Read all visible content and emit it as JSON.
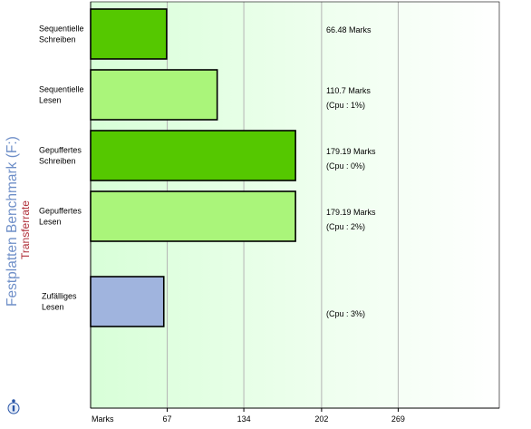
{
  "window": {
    "title": "Festplatten Benchmark (F:)",
    "subtitle": "Transferrate",
    "info_icon": "info-icon"
  },
  "colors": {
    "title": "#6f8fc8",
    "subtitle": "#b0303a",
    "bar_dark": "#55c800",
    "bar_light": "#aaf57a",
    "bar_blue": "#a0b4de",
    "plot_bg_from": "#d8ffd8",
    "plot_bg_to": "#ffffff",
    "grid": "#b4b4b4"
  },
  "chart_data": {
    "type": "bar",
    "orientation": "horizontal",
    "xlabel": "Marks",
    "xlim": [
      0,
      269
    ],
    "xticks": [
      67,
      134,
      202,
      269
    ],
    "grid": true,
    "categories": [
      [
        "Sequentielle",
        "Schreiben"
      ],
      [
        "Sequentielle",
        "Lesen"
      ],
      [
        "Gepuffertes",
        "Schreiben"
      ],
      [
        "Gepuffertes",
        "Lesen"
      ],
      [
        "Zufälliges",
        "Lesen"
      ]
    ],
    "values": [
      66.48,
      110.7,
      179.19,
      179.19,
      64
    ],
    "bar_colors": [
      "#55c800",
      "#aaf57a",
      "#55c800",
      "#aaf57a",
      "#a0b4de"
    ],
    "value_labels": [
      "66.48 Marks",
      "110.7 Marks",
      "179.19 Marks",
      "179.19 Marks",
      ""
    ],
    "cpu_labels": [
      "",
      "(Cpu : 1%)",
      "(Cpu : 0%)",
      "(Cpu : 2%)",
      "(Cpu : 3%)"
    ]
  }
}
